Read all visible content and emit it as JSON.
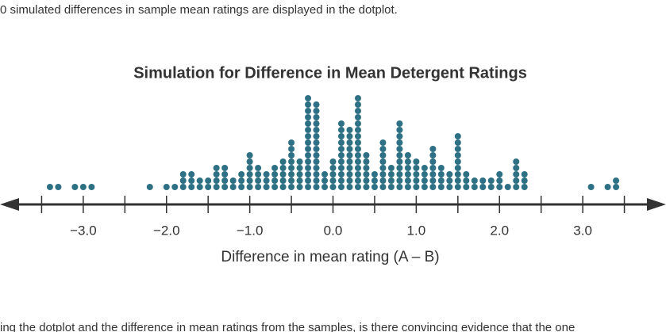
{
  "page": {
    "intro": "0 simulated differences in sample mean ratings are displayed in the dotplot.",
    "question": "ing the dotplot and the difference in mean ratings from the samples, is there convincing evidence that the one"
  },
  "chart_data": {
    "type": "dotplot",
    "title": "Simulation for Difference in Mean Detergent Ratings",
    "xlabel": "Difference in mean rating (A – B)",
    "color": "#2f7184",
    "x": [
      -3.4,
      -3.3,
      -3.1,
      -3.0,
      -2.9,
      -2.2,
      -2.0,
      -1.9,
      -1.8,
      -1.7,
      -1.6,
      -1.5,
      -1.4,
      -1.3,
      -1.2,
      -1.1,
      -1.0,
      -0.9,
      -0.8,
      -0.7,
      -0.6,
      -0.5,
      -0.4,
      -0.3,
      -0.2,
      -0.1,
      0.0,
      0.1,
      0.2,
      0.3,
      0.4,
      0.5,
      0.6,
      0.7,
      0.8,
      0.9,
      1.0,
      1.1,
      1.2,
      1.3,
      1.4,
      1.5,
      1.6,
      1.7,
      1.8,
      1.9,
      2.0,
      2.1,
      2.2,
      2.3,
      3.1,
      3.3,
      3.4
    ],
    "counts": [
      1,
      1,
      1,
      1,
      1,
      1,
      1,
      1,
      3,
      3,
      2,
      2,
      4,
      4,
      2,
      3,
      6,
      4,
      3,
      4,
      5,
      8,
      5,
      15,
      14,
      3,
      5,
      11,
      10,
      15,
      6,
      3,
      8,
      4,
      11,
      6,
      5,
      4,
      7,
      4,
      3,
      9,
      3,
      2,
      2,
      2,
      3,
      1,
      5,
      3,
      1,
      1,
      2
    ],
    "xlim": [
      -4,
      4
    ],
    "xticks": [
      {
        "value": -3,
        "label": "−3.0"
      },
      {
        "value": -2,
        "label": "−2.0"
      },
      {
        "value": -1,
        "label": "−1.0"
      },
      {
        "value": 0,
        "label": "0.0"
      },
      {
        "value": 1,
        "label": "1.0"
      },
      {
        "value": 2,
        "label": "2.0"
      },
      {
        "value": 3,
        "label": "3.0"
      }
    ],
    "minor_xticks": [
      -3.5,
      -2.5,
      -1.5,
      -0.5,
      0.5,
      1.5,
      2.5,
      3.5
    ]
  }
}
